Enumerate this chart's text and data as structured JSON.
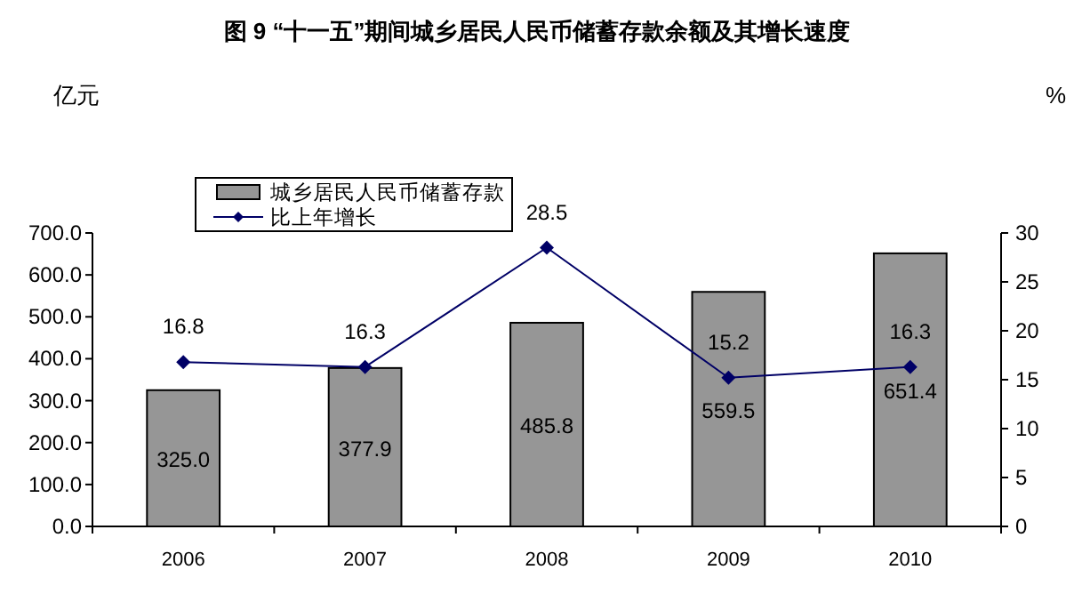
{
  "chart_data": {
    "type": "bar",
    "title": "图 9 “十一五”期间城乡居民人民币储蓄存款余额及其增长速度",
    "ylabel": "亿元",
    "y2label": "%",
    "categories": [
      "2006",
      "2007",
      "2008",
      "2009",
      "2010"
    ],
    "series": [
      {
        "name": "城乡居民人民币储蓄存款",
        "color": "#969696",
        "values": [
          325.0,
          377.9,
          485.8,
          559.5,
          651.4
        ],
        "value_labels": [
          "325.0",
          "377.9",
          "485.8",
          "559.5",
          "651.4"
        ]
      },
      {
        "name": "比上年增长",
        "type": "line",
        "axis": "y2",
        "color": "#000066",
        "marker": "diamond",
        "values": [
          16.8,
          16.3,
          28.5,
          15.2,
          16.3
        ]
      }
    ],
    "ylim": [
      0,
      700
    ],
    "yticks": [
      {
        "value": 0,
        "label": "0.0"
      },
      {
        "value": 100,
        "label": "100.0"
      },
      {
        "value": 200,
        "label": "200.0"
      },
      {
        "value": 300,
        "label": "300.0"
      },
      {
        "value": 400,
        "label": "400.0"
      },
      {
        "value": 500,
        "label": "500.0"
      },
      {
        "value": 600,
        "label": "600.0"
      },
      {
        "value": 700,
        "label": "700.0"
      }
    ],
    "y2lim": [
      0,
      30
    ],
    "y2ticks": [
      0,
      5,
      10,
      15,
      20,
      25,
      30
    ],
    "data_labels": true,
    "grid": false,
    "legend": "top left"
  }
}
